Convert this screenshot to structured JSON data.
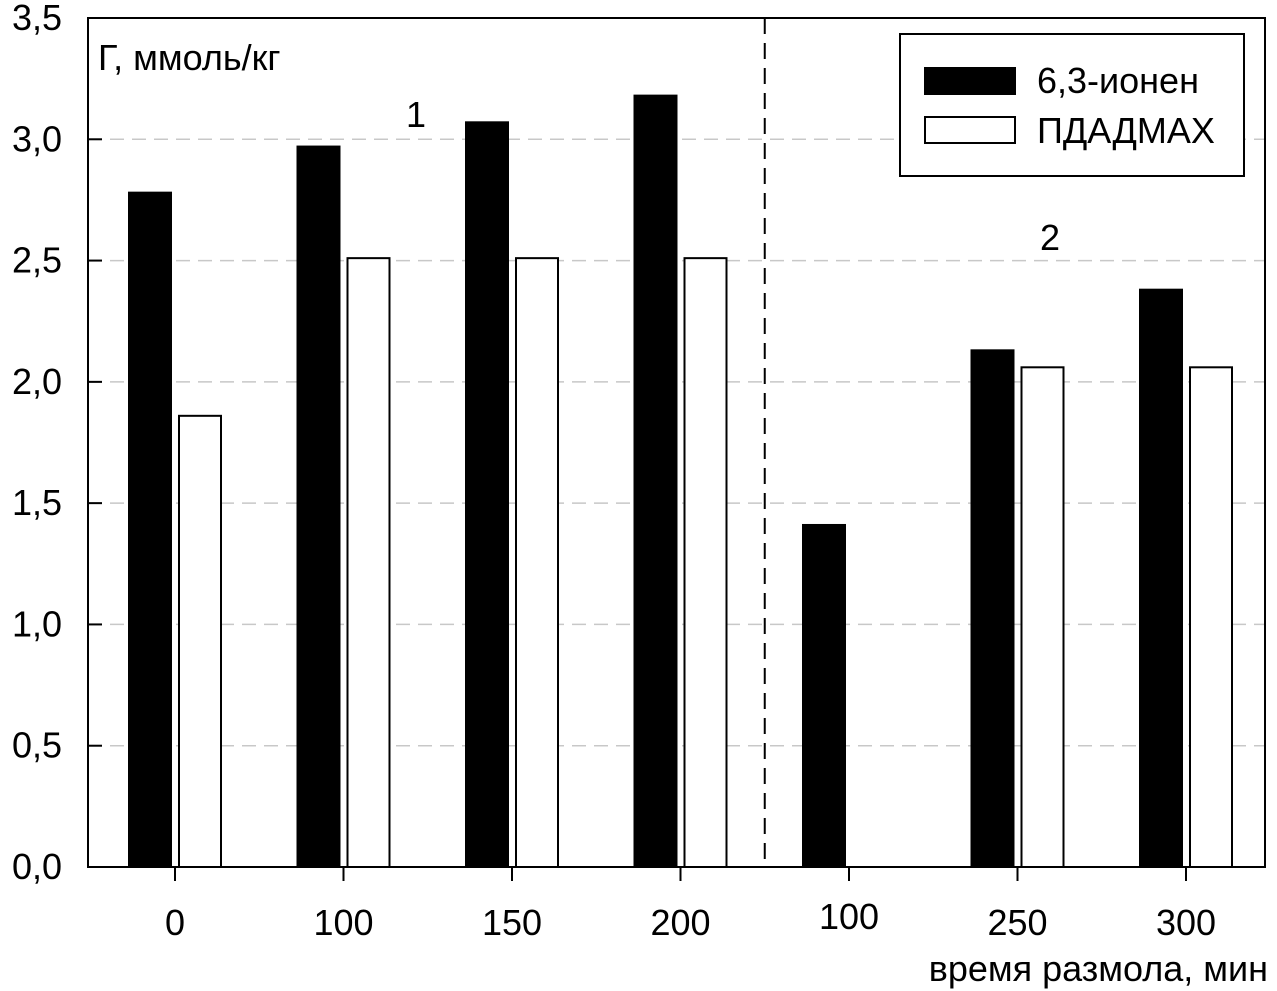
{
  "chart_data": {
    "type": "bar",
    "categories": [
      "0",
      "100",
      "150",
      "200",
      "100",
      "250",
      "300"
    ],
    "series": [
      {
        "name": "6,3-ионен",
        "values": [
          2.78,
          2.97,
          3.07,
          3.18,
          1.41,
          2.13,
          2.38
        ],
        "color": "#000000"
      },
      {
        "name": "ПДАДМАХ",
        "values": [
          1.86,
          2.51,
          2.51,
          2.51,
          null,
          2.06,
          2.06
        ],
        "color": "#ffffff"
      }
    ],
    "ylabel": "Г, ммоль/кг",
    "xlabel": "время размола, мин",
    "ylim": [
      0,
      3.5
    ],
    "yticks": [
      "0,0",
      "0,5",
      "1,0",
      "1,5",
      "2,0",
      "2,5",
      "3,0",
      "3,5"
    ],
    "grid": "horizontal dashed",
    "legend": "top-right",
    "group_labels": [
      "1",
      "2"
    ],
    "separator_after_category": 3
  }
}
